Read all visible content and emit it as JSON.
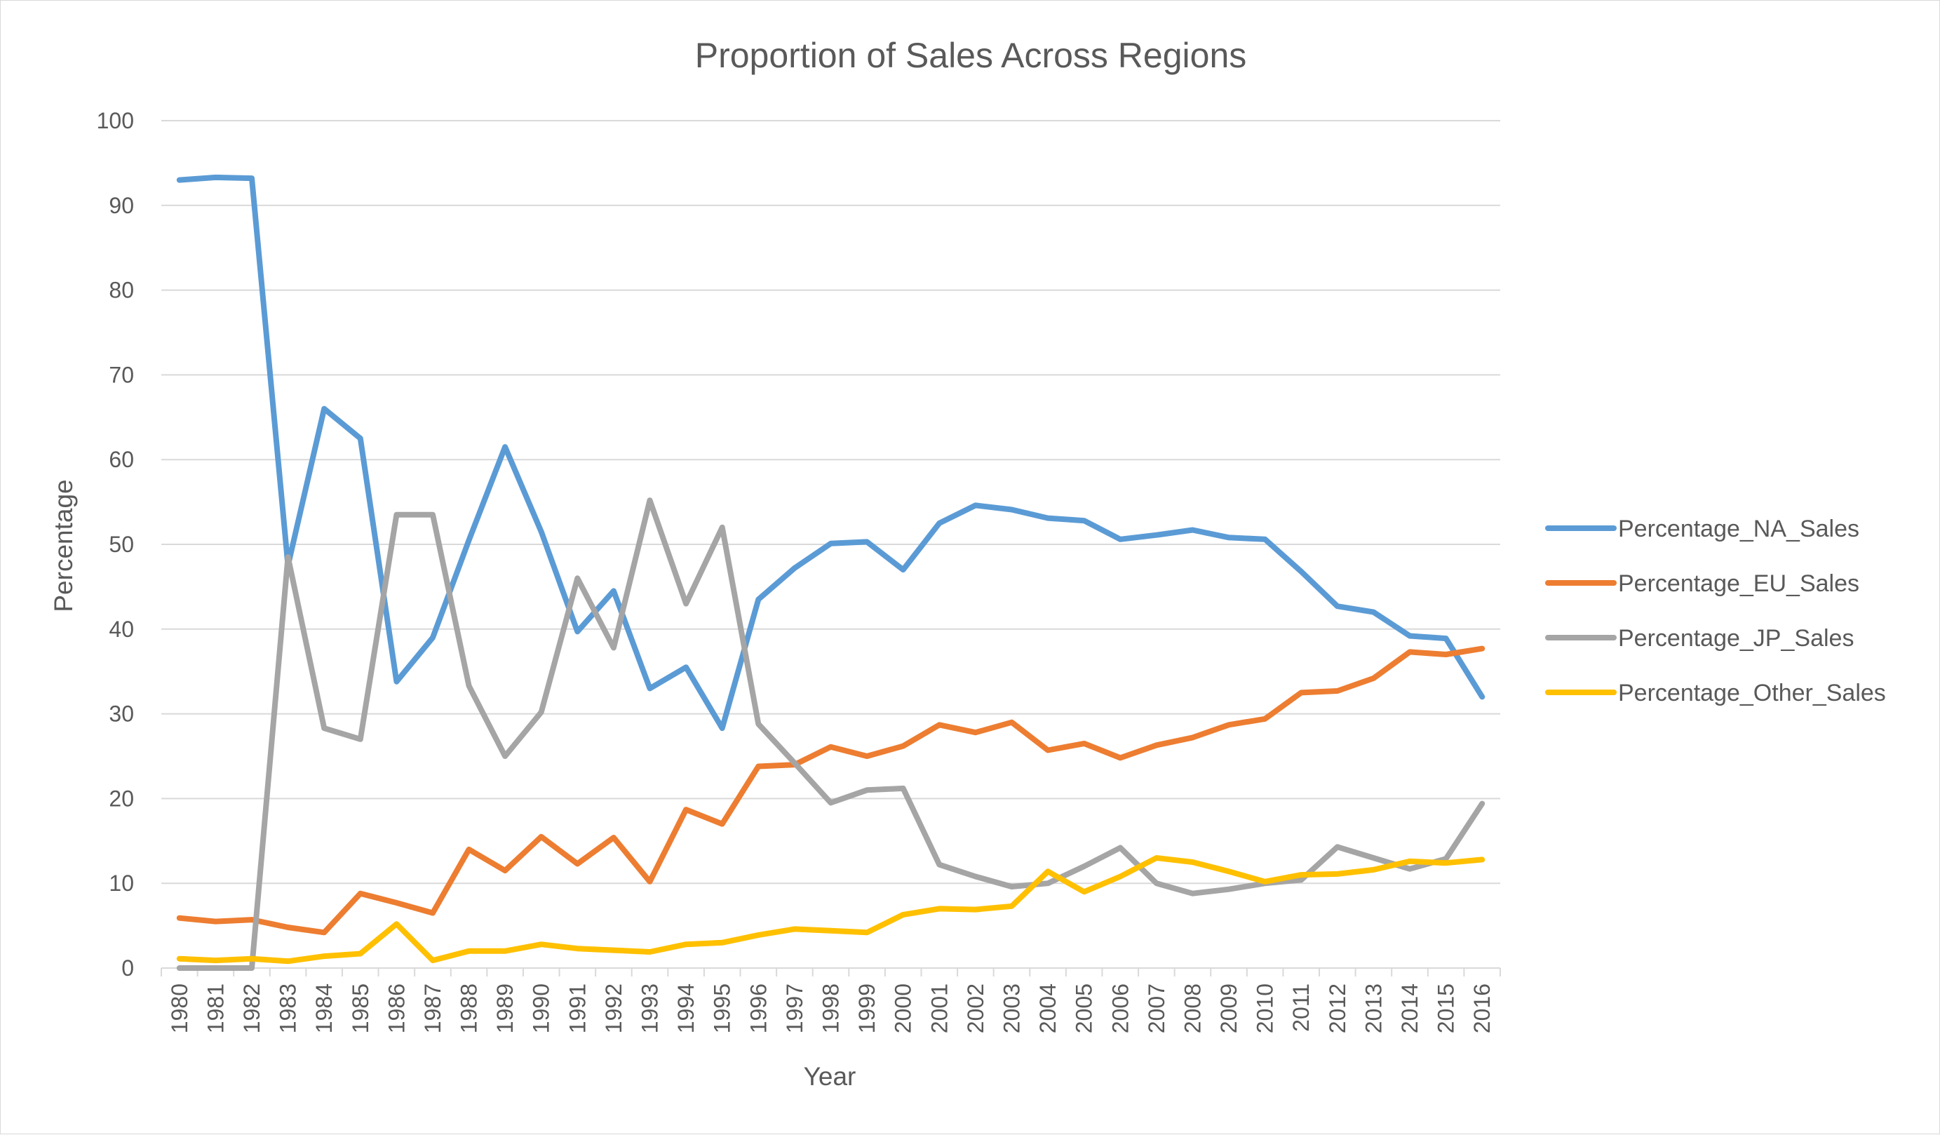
{
  "chart_data": {
    "type": "line",
    "title": "Proportion of Sales Across Regions",
    "xlabel": "Year",
    "ylabel": "Percentage",
    "ylim": [
      0,
      100
    ],
    "yticks": [
      "0",
      "10",
      "20",
      "30",
      "40",
      "50",
      "60",
      "70",
      "80",
      "90",
      "100"
    ],
    "grid": true,
    "legend_position": "right",
    "categories": [
      "1980",
      "1981",
      "1982",
      "1983",
      "1984",
      "1985",
      "1986",
      "1987",
      "1988",
      "1989",
      "1990",
      "1991",
      "1992",
      "1993",
      "1994",
      "1995",
      "1996",
      "1997",
      "1998",
      "1999",
      "2000",
      "2001",
      "2002",
      "2003",
      "2004",
      "2005",
      "2006",
      "2007",
      "2008",
      "2009",
      "2010",
      "2011",
      "2012",
      "2013",
      "2014",
      "2015",
      "2016"
    ],
    "series": [
      {
        "name": "Percentage_NA_Sales",
        "color": "#5b9bd5",
        "values": [
          93.0,
          93.3,
          93.2,
          47.5,
          66.0,
          62.5,
          33.8,
          39.0,
          50.5,
          61.5,
          51.5,
          39.7,
          44.5,
          33.0,
          35.5,
          28.3,
          43.5,
          47.2,
          50.1,
          50.3,
          47.0,
          52.5,
          54.6,
          54.1,
          53.1,
          52.8,
          50.6,
          51.1,
          51.7,
          50.8,
          50.6,
          46.8,
          42.7,
          42.0,
          39.2,
          38.9,
          32.0
        ]
      },
      {
        "name": "Percentage_EU_Sales",
        "color": "#ed7d31",
        "values": [
          5.9,
          5.5,
          5.7,
          4.8,
          4.2,
          8.8,
          7.7,
          6.5,
          14.0,
          11.5,
          15.5,
          12.3,
          15.4,
          10.2,
          18.7,
          17.0,
          23.8,
          24.0,
          26.1,
          25.0,
          26.2,
          28.7,
          27.8,
          29.0,
          25.7,
          26.5,
          24.8,
          26.3,
          27.2,
          28.7,
          29.4,
          32.5,
          32.7,
          34.2,
          37.3,
          37.0,
          37.7
        ]
      },
      {
        "name": "Percentage_JP_Sales",
        "color": "#a5a5a5",
        "values": [
          0.0,
          0.0,
          0.0,
          48.5,
          28.3,
          27.0,
          53.5,
          53.5,
          33.3,
          25.0,
          30.2,
          46.0,
          37.8,
          55.2,
          43.0,
          52.0,
          28.8,
          24.2,
          19.5,
          21.0,
          21.2,
          12.2,
          10.8,
          9.6,
          10.0,
          12.0,
          14.2,
          10.0,
          8.8,
          9.3,
          10.0,
          10.4,
          14.3,
          13.0,
          11.7,
          12.9,
          19.4
        ]
      },
      {
        "name": "Percentage_Other_Sales",
        "color": "#ffc000",
        "values": [
          1.1,
          0.9,
          1.1,
          0.8,
          1.4,
          1.7,
          5.2,
          0.9,
          2.0,
          2.0,
          2.8,
          2.3,
          2.1,
          1.9,
          2.8,
          3.0,
          3.9,
          4.6,
          4.4,
          4.2,
          6.3,
          7.0,
          6.9,
          7.3,
          11.4,
          9.0,
          10.8,
          13.0,
          12.5,
          11.4,
          10.2,
          11.0,
          11.1,
          11.6,
          12.6,
          12.4,
          12.8
        ]
      }
    ]
  }
}
